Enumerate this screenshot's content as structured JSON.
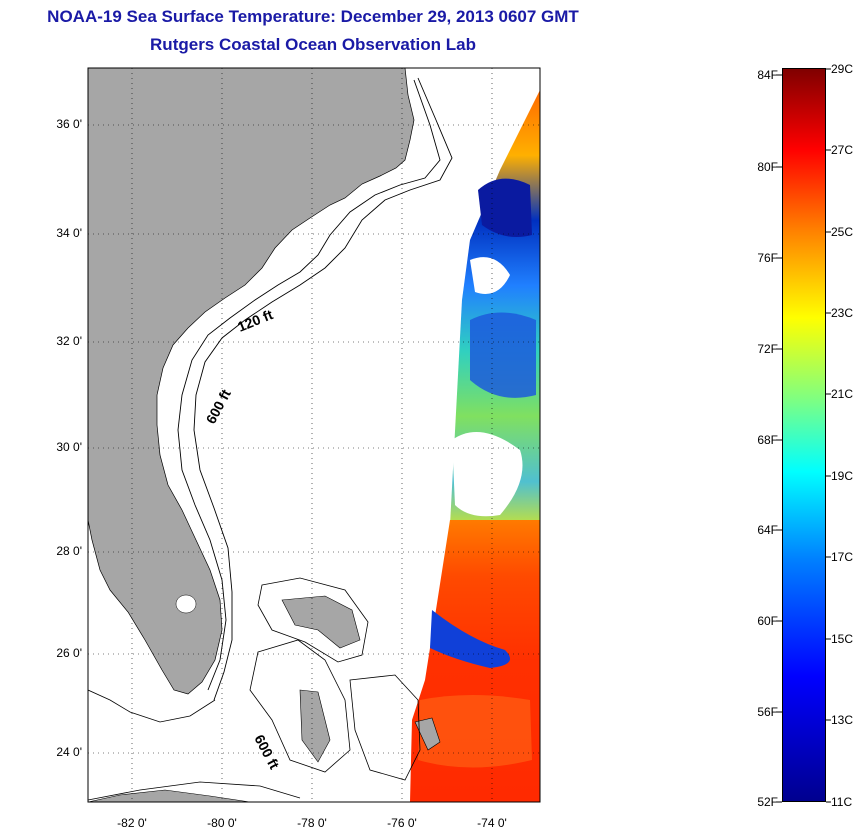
{
  "title": "NOAA-19 Sea Surface Temperature:  December 29, 2013 0607 GMT",
  "subtitle": "Rutgers Coastal Ocean Observation Lab",
  "lat_ticks": [
    "36 0'",
    "34 0'",
    "32 0'",
    "30 0'",
    "28 0'",
    "26 0'",
    "24 0'"
  ],
  "lon_ticks": [
    "-82 0'",
    "-80 0'",
    "-78 0'",
    "-76 0'",
    "-74 0'"
  ],
  "contours": {
    "shelf": "120 ft",
    "slope": "600 ft",
    "bahamas": "600 ft"
  },
  "colorbar": {
    "fahrenheit": [
      "84F",
      "80F",
      "76F",
      "72F",
      "68F",
      "64F",
      "60F",
      "56F",
      "52F"
    ],
    "celsius": [
      "29C",
      "27C",
      "25C",
      "23C",
      "21C",
      "19C",
      "17C",
      "15C",
      "13C",
      "11C"
    ],
    "colors": [
      "#00008f",
      "#0000ff",
      "#0080ff",
      "#00ffff",
      "#80ff80",
      "#ffff00",
      "#ff8000",
      "#ff0000",
      "#800000"
    ]
  },
  "colors": {
    "land": "#a6a6a6",
    "title": "#1a1aa6",
    "ocean_warm": "#ff4a00",
    "ocean_cool": "#1030d0"
  }
}
